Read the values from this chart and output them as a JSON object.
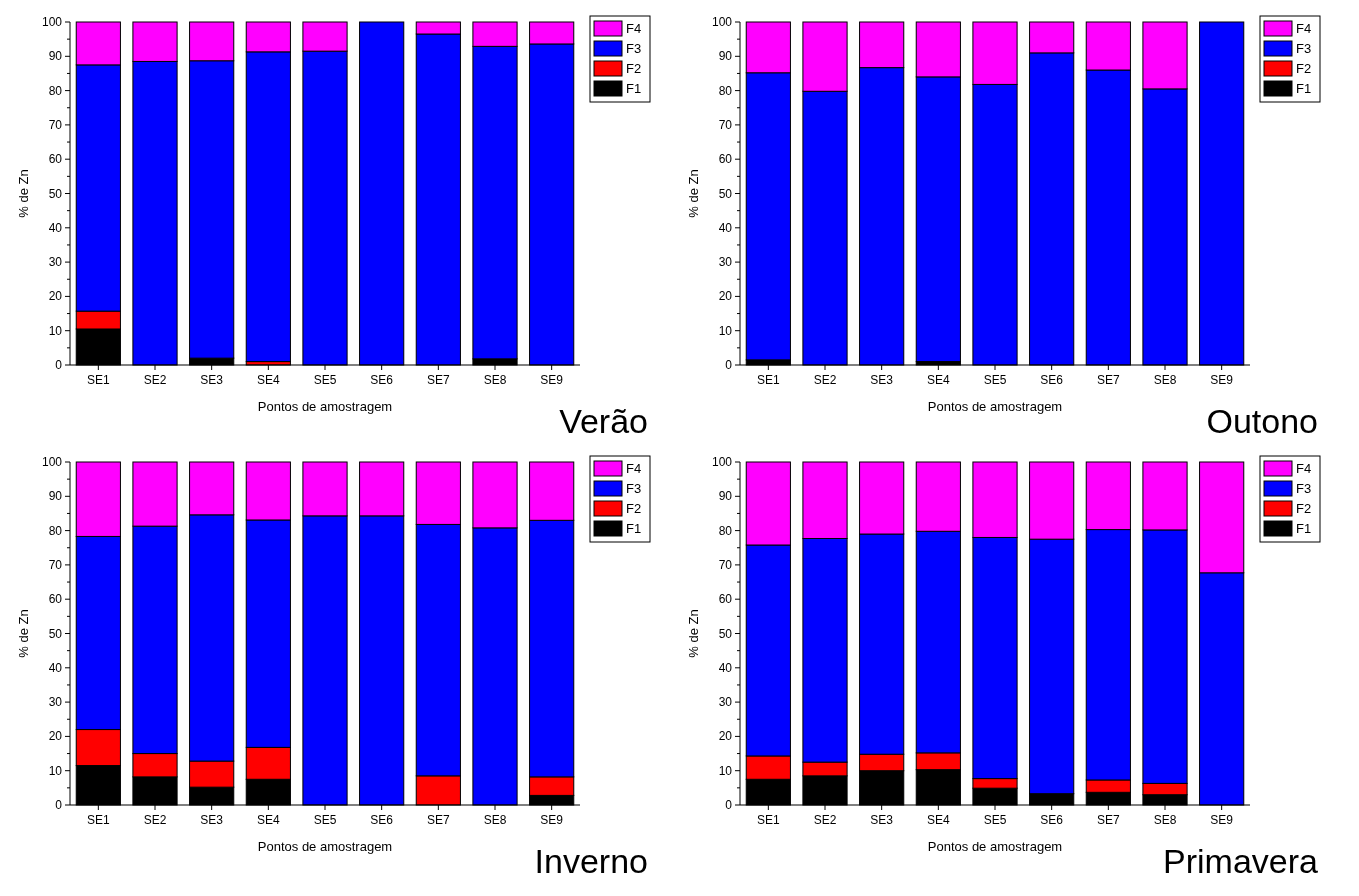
{
  "chart_data": [
    {
      "type": "bar",
      "stacked": true,
      "title": "Verão",
      "xlabel": "Pontos de amostragem",
      "ylabel": "% de Zn",
      "categories": [
        "SE1",
        "SE2",
        "SE3",
        "SE4",
        "SE5",
        "SE6",
        "SE7",
        "SE8",
        "SE9"
      ],
      "ylim": [
        0,
        100
      ],
      "yticks": [
        0,
        {
          "value": 5,
          "label": null
        },
        10,
        {
          "value": 15,
          "label": null
        },
        20,
        {
          "value": 25,
          "label": null
        },
        30,
        {
          "value": 35,
          "label": null
        },
        40,
        {
          "value": 45,
          "label": null
        },
        50,
        {
          "value": 55,
          "label": null
        },
        60,
        {
          "value": 65,
          "label": null
        },
        70,
        {
          "value": 75,
          "label": null
        },
        80,
        {
          "value": 85,
          "label": null
        },
        90,
        {
          "value": 95,
          "label": null
        },
        100
      ],
      "legend": "top right",
      "series": [
        {
          "name": "F1",
          "color": "#000000",
          "values": [
            10.5,
            0,
            2,
            0,
            0,
            0,
            0,
            1.8,
            0
          ]
        },
        {
          "name": "F2",
          "color": "#ff0000",
          "values": [
            5.2,
            0,
            0,
            1,
            0,
            0,
            0,
            0,
            0
          ]
        },
        {
          "name": "F3",
          "color": "#0000ff",
          "values": [
            71.8,
            88.5,
            86.7,
            90.3,
            91.5,
            100,
            96.5,
            91.1,
            93.6
          ]
        },
        {
          "name": "F4",
          "color": "#ff00ff",
          "values": [
            12.5,
            11.5,
            11.3,
            8.7,
            8.5,
            0,
            3.5,
            7.1,
            6.4
          ]
        }
      ]
    },
    {
      "type": "bar",
      "stacked": true,
      "title": "Outono",
      "xlabel": "Pontos de amostragem",
      "ylabel": "% de Zn",
      "categories": [
        "SE1",
        "SE2",
        "SE3",
        "SE4",
        "SE5",
        "SE6",
        "SE7",
        "SE8",
        "SE9"
      ],
      "ylim": [
        0,
        100
      ],
      "yticks": [
        0,
        {
          "value": 5,
          "label": null
        },
        10,
        {
          "value": 15,
          "label": null
        },
        20,
        {
          "value": 25,
          "label": null
        },
        30,
        {
          "value": 35,
          "label": null
        },
        40,
        {
          "value": 45,
          "label": null
        },
        50,
        {
          "value": 55,
          "label": null
        },
        60,
        {
          "value": 65,
          "label": null
        },
        70,
        {
          "value": 75,
          "label": null
        },
        80,
        {
          "value": 85,
          "label": null
        },
        90,
        {
          "value": 95,
          "label": null
        },
        100
      ],
      "legend": "top right",
      "series": [
        {
          "name": "F1",
          "color": "#000000",
          "values": [
            1.5,
            0,
            0,
            1,
            0,
            0,
            0,
            0,
            0
          ]
        },
        {
          "name": "F2",
          "color": "#ff0000",
          "values": [
            0,
            0,
            0,
            0,
            0,
            0,
            0,
            0,
            0
          ]
        },
        {
          "name": "F3",
          "color": "#0000ff",
          "values": [
            83.7,
            79.8,
            86.7,
            83,
            81.8,
            91,
            86,
            80.5,
            100
          ]
        },
        {
          "name": "F4",
          "color": "#ff00ff",
          "values": [
            14.8,
            20.2,
            13.3,
            16,
            18.2,
            9,
            14,
            19.5,
            0
          ]
        }
      ]
    },
    {
      "type": "bar",
      "stacked": true,
      "title": "Inverno",
      "xlabel": "Pontos de amostragem",
      "ylabel": "% de Zn",
      "categories": [
        "SE1",
        "SE2",
        "SE3",
        "SE4",
        "SE5",
        "SE6",
        "SE7",
        "SE8",
        "SE9"
      ],
      "ylim": [
        0,
        100
      ],
      "yticks": [
        0,
        {
          "value": 5,
          "label": null
        },
        10,
        {
          "value": 15,
          "label": null
        },
        20,
        {
          "value": 25,
          "label": null
        },
        30,
        {
          "value": 35,
          "label": null
        },
        40,
        {
          "value": 45,
          "label": null
        },
        50,
        {
          "value": 55,
          "label": null
        },
        60,
        {
          "value": 65,
          "label": null
        },
        70,
        {
          "value": 75,
          "label": null
        },
        80,
        {
          "value": 85,
          "label": null
        },
        90,
        {
          "value": 95,
          "label": null
        },
        100
      ],
      "legend": "top right",
      "series": [
        {
          "name": "F1",
          "color": "#000000",
          "values": [
            11.5,
            8.2,
            5.2,
            7.5,
            0,
            0,
            0,
            0,
            2.8
          ]
        },
        {
          "name": "F2",
          "color": "#ff0000",
          "values": [
            10.5,
            6.8,
            7.6,
            9.3,
            0,
            0,
            8.5,
            0,
            5.4
          ]
        },
        {
          "name": "F3",
          "color": "#0000ff",
          "values": [
            56.3,
            66.3,
            71.8,
            66.3,
            84.3,
            84.3,
            73.3,
            80.8,
            74.8
          ]
        },
        {
          "name": "F4",
          "color": "#ff00ff",
          "values": [
            21.7,
            18.7,
            15.4,
            16.9,
            15.7,
            15.7,
            18.2,
            19.2,
            17
          ]
        }
      ]
    },
    {
      "type": "bar",
      "stacked": true,
      "title": "Primavera",
      "xlabel": "Pontos de amostragem",
      "ylabel": "% de Zn",
      "categories": [
        "SE1",
        "SE2",
        "SE3",
        "SE4",
        "SE5",
        "SE6",
        "SE7",
        "SE8",
        "SE9"
      ],
      "ylim": [
        0,
        100
      ],
      "yticks": [
        0,
        {
          "value": 5,
          "label": null
        },
        10,
        {
          "value": 15,
          "label": null
        },
        20,
        {
          "value": 25,
          "label": null
        },
        30,
        {
          "value": 35,
          "label": null
        },
        40,
        {
          "value": 45,
          "label": null
        },
        50,
        {
          "value": 55,
          "label": null
        },
        60,
        {
          "value": 65,
          "label": null
        },
        70,
        {
          "value": 75,
          "label": null
        },
        80,
        {
          "value": 85,
          "label": null
        },
        90,
        {
          "value": 95,
          "label": null
        },
        100
      ],
      "legend": "top right",
      "series": [
        {
          "name": "F1",
          "color": "#000000",
          "values": [
            7.5,
            8.5,
            10,
            10.3,
            4.9,
            3.3,
            3.7,
            3,
            0
          ]
        },
        {
          "name": "F2",
          "color": "#ff0000",
          "values": [
            6.8,
            4,
            4.8,
            4.9,
            2.8,
            0,
            3.6,
            3.3,
            0
          ]
        },
        {
          "name": "F3",
          "color": "#0000ff",
          "values": [
            61.5,
            65.2,
            64.2,
            64.6,
            70.3,
            74.2,
            73,
            73.9,
            67.7
          ]
        },
        {
          "name": "F4",
          "color": "#ff00ff",
          "values": [
            24.2,
            22.3,
            21,
            20.2,
            22,
            22.5,
            19.7,
            19.8,
            32.3
          ]
        }
      ]
    }
  ]
}
